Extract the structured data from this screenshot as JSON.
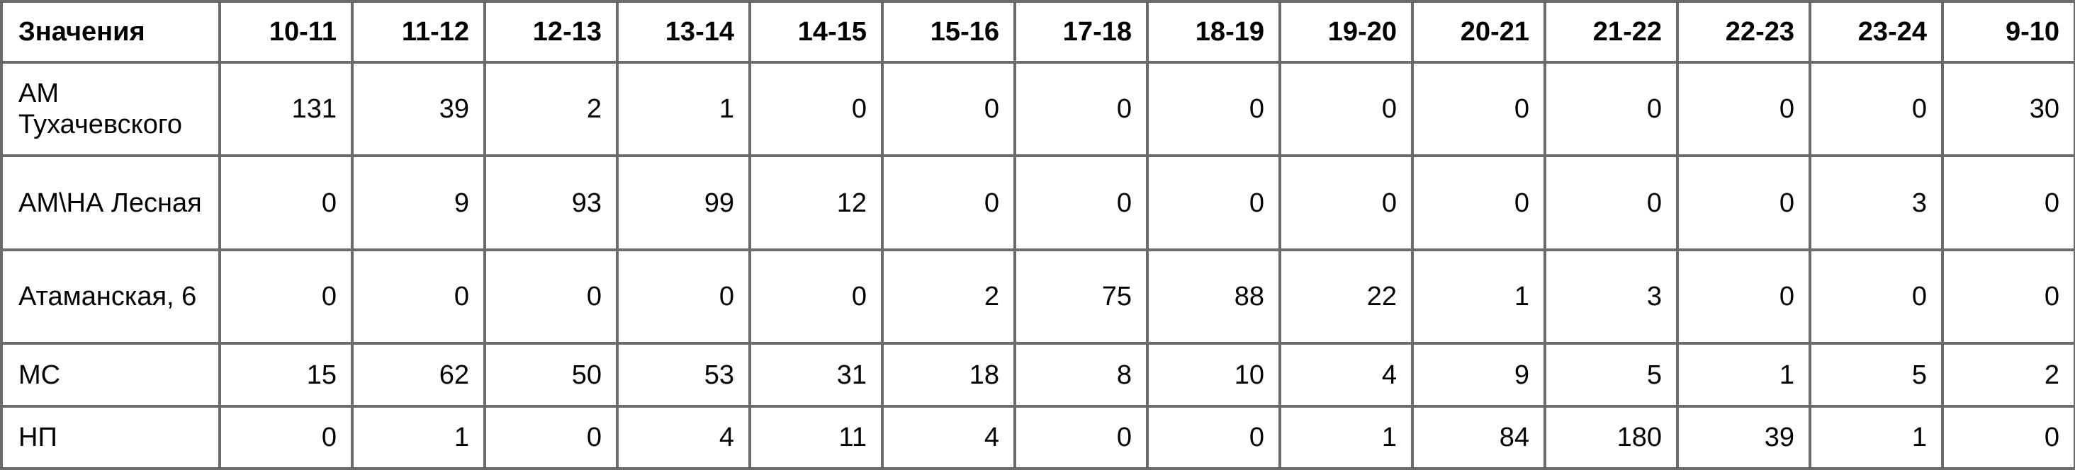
{
  "table": {
    "corner_header": "Значения",
    "columns": [
      "10-11",
      "11-12",
      "12-13",
      "13-14",
      "14-15",
      "15-16",
      "17-18",
      "18-19",
      "19-20",
      "20-21",
      "21-22",
      "22-23",
      "23-24",
      "9-10"
    ],
    "rows": [
      {
        "label": "АМ Тухачевского",
        "values": [
          "131",
          "39",
          "2",
          "1",
          "0",
          "0",
          "0",
          "0",
          "0",
          "0",
          "0",
          "0",
          "0",
          "30"
        ]
      },
      {
        "label": "АМ\\НА Лесная",
        "values": [
          "0",
          "9",
          "93",
          "99",
          "12",
          "0",
          "0",
          "0",
          "0",
          "0",
          "0",
          "0",
          "3",
          "0"
        ]
      },
      {
        "label": "Атаманская, 6",
        "values": [
          "0",
          "0",
          "0",
          "0",
          "0",
          "2",
          "75",
          "88",
          "22",
          "1",
          "3",
          "0",
          "0",
          "0"
        ]
      },
      {
        "label": "МС",
        "values": [
          "15",
          "62",
          "50",
          "53",
          "31",
          "18",
          "8",
          "10",
          "4",
          "9",
          "5",
          "1",
          "5",
          "2"
        ]
      },
      {
        "label": "НП",
        "values": [
          "0",
          "1",
          "0",
          "4",
          "11",
          "4",
          "0",
          "0",
          "1",
          "84",
          "180",
          "39",
          "1",
          "0"
        ]
      }
    ]
  }
}
